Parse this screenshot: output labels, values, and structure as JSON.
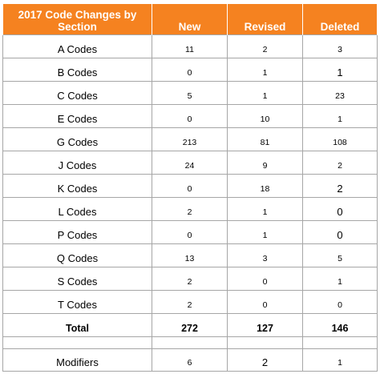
{
  "header": {
    "section_line1": "2017 Code Changes by",
    "section_line2": "Section",
    "new": "New",
    "revised": "Revised",
    "deleted": "Deleted"
  },
  "header_color": "#f58220",
  "rows": [
    {
      "section": "A Codes",
      "new": "11",
      "revised": "2",
      "deleted": "3"
    },
    {
      "section": "B Codes",
      "new": "0",
      "revised": "1",
      "deleted": "1"
    },
    {
      "section": "C Codes",
      "new": "5",
      "revised": "1",
      "deleted": "23"
    },
    {
      "section": "E Codes",
      "new": "0",
      "revised": "10",
      "deleted": "1"
    },
    {
      "section": "G Codes",
      "new": "213",
      "revised": "81",
      "deleted": "108"
    },
    {
      "section": "J Codes",
      "new": "24",
      "revised": "9",
      "deleted": "2"
    },
    {
      "section": "K Codes",
      "new": "0",
      "revised": "18",
      "deleted": "2"
    },
    {
      "section": "L Codes",
      "new": "2",
      "revised": "1",
      "deleted": "0"
    },
    {
      "section": "P Codes",
      "new": "0",
      "revised": "1",
      "deleted": "0"
    },
    {
      "section": "Q Codes",
      "new": "13",
      "revised": "3",
      "deleted": "5"
    },
    {
      "section": "S Codes",
      "new": "2",
      "revised": "0",
      "deleted": "1"
    },
    {
      "section": "T Codes",
      "new": "2",
      "revised": "0",
      "deleted": "0"
    }
  ],
  "total": {
    "section": "Total",
    "new": "272",
    "revised": "127",
    "deleted": "146"
  },
  "modifiers": {
    "section": "Modifiers",
    "new": "6",
    "revised": "2",
    "deleted": "1"
  }
}
